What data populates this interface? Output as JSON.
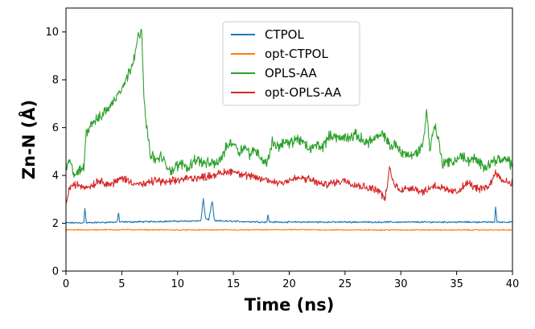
{
  "chart_data": {
    "type": "line",
    "title": "",
    "xlabel": "Time (ns)",
    "ylabel": "Zn-N (Å)",
    "xlim": [
      0,
      40
    ],
    "ylim": [
      0,
      11
    ],
    "x_ticks": [
      0,
      5,
      10,
      15,
      20,
      25,
      30,
      35,
      40
    ],
    "y_ticks": [
      0,
      2,
      4,
      6,
      8,
      10
    ],
    "grid": false,
    "legend_position": "top-center",
    "series": [
      {
        "name": "CTPOL",
        "color": "#1f77b4",
        "noise": 0.04,
        "x": [
          0,
          1.6,
          1.7,
          1.8,
          4.6,
          4.7,
          4.8,
          12.1,
          12.3,
          12.5,
          12.8,
          13.1,
          13.3,
          18,
          18.1,
          18.2,
          38.4,
          38.5,
          38.6,
          40
        ],
        "values": [
          2.02,
          2.02,
          2.7,
          2.02,
          2.05,
          2.5,
          2.05,
          2.1,
          3.05,
          2.2,
          2.15,
          2.95,
          2.1,
          2.05,
          2.4,
          2.05,
          2.05,
          2.75,
          2.05,
          2.05
        ]
      },
      {
        "name": "opt-CTPOL",
        "color": "#ff7f0e",
        "noise": 0.03,
        "x": [
          0,
          5,
          10,
          15,
          20,
          25,
          30,
          35,
          40
        ],
        "values": [
          1.72,
          1.73,
          1.72,
          1.72,
          1.73,
          1.72,
          1.72,
          1.72,
          1.72
        ]
      },
      {
        "name": "OPLS-AA",
        "color": "#2ca02c",
        "noise": 0.28,
        "x": [
          0,
          0.3,
          0.8,
          1.3,
          1.6,
          1.8,
          2.3,
          3.0,
          3.5,
          4.0,
          4.5,
          5.0,
          5.5,
          6.0,
          6.5,
          6.8,
          7.0,
          7.2,
          7.5,
          8.0,
          8.5,
          9.0,
          9.5,
          10,
          10.5,
          11,
          11.5,
          12,
          12.5,
          13,
          13.5,
          14,
          14.5,
          15,
          15.5,
          16,
          16.5,
          17,
          17.5,
          18,
          18.5,
          19,
          19.5,
          20,
          20.5,
          21,
          21.5,
          22,
          22.5,
          23,
          23.5,
          24,
          24.5,
          25,
          25.5,
          26,
          26.5,
          27,
          27.5,
          28,
          28.5,
          29,
          29.5,
          30,
          30.5,
          31,
          31.5,
          32,
          32.3,
          32.6,
          33,
          33.4,
          33.7,
          34,
          34.5,
          35,
          35.5,
          36,
          36.5,
          37,
          37.5,
          38,
          38.5,
          39,
          39.5,
          40
        ],
        "values": [
          4.3,
          4.6,
          4.0,
          4.2,
          4.3,
          5.8,
          6.2,
          6.4,
          6.7,
          6.9,
          7.3,
          7.7,
          8.1,
          8.8,
          9.8,
          10.0,
          7.0,
          6.2,
          5.0,
          4.6,
          4.8,
          4.4,
          4.2,
          4.4,
          4.5,
          4.3,
          4.7,
          4.6,
          4.5,
          4.5,
          4.5,
          4.8,
          5.3,
          5.4,
          5.0,
          5.2,
          4.9,
          5.1,
          4.7,
          4.5,
          5.4,
          5.2,
          5.4,
          5.3,
          5.5,
          5.5,
          5.2,
          5.1,
          5.3,
          5.2,
          5.6,
          5.7,
          5.5,
          5.6,
          5.6,
          5.7,
          5.5,
          5.4,
          5.5,
          5.6,
          5.7,
          5.2,
          5.3,
          5.0,
          4.9,
          4.8,
          5.0,
          5.3,
          6.8,
          5.0,
          6.2,
          5.4,
          4.5,
          4.6,
          4.5,
          4.7,
          4.8,
          4.6,
          4.7,
          4.5,
          4.4,
          4.5,
          4.7,
          4.6,
          4.7,
          4.4
        ]
      },
      {
        "name": "opt-OPLS-AA",
        "color": "#d62728",
        "noise": 0.2,
        "x": [
          0,
          0.2,
          0.5,
          1,
          2,
          3,
          4,
          5,
          6,
          7,
          8,
          9,
          10,
          11,
          12,
          13,
          14,
          15,
          16,
          17,
          18,
          19,
          20,
          21,
          22,
          23,
          24,
          25,
          26,
          27,
          28,
          28.6,
          29,
          29.4,
          30,
          31,
          32,
          33,
          34,
          35,
          36,
          37,
          38,
          38.5,
          39,
          40
        ],
        "values": [
          2.7,
          3.3,
          3.6,
          3.6,
          3.5,
          3.8,
          3.6,
          3.9,
          3.7,
          3.6,
          3.8,
          3.7,
          3.8,
          3.9,
          3.9,
          4.0,
          4.1,
          4.2,
          4.0,
          3.9,
          3.8,
          3.7,
          3.8,
          3.9,
          3.8,
          3.6,
          3.7,
          3.8,
          3.6,
          3.5,
          3.4,
          3.0,
          4.3,
          3.6,
          3.4,
          3.5,
          3.3,
          3.6,
          3.4,
          3.3,
          3.7,
          3.4,
          3.6,
          4.2,
          3.8,
          3.7
        ]
      }
    ]
  }
}
